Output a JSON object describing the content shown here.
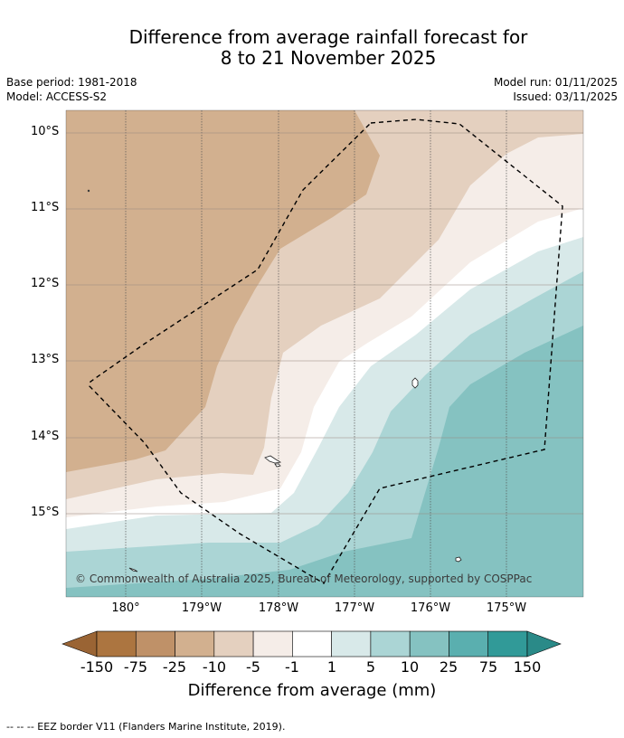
{
  "header": {
    "title_line1": "Difference from average rainfall forecast for",
    "title_line2": "8 to 21 November 2025",
    "base_period": "Base period: 1981-2018",
    "model": "Model: ACCESS-S2",
    "model_run": "Model run: 01/11/2025",
    "issued": "Issued: 03/11/2025"
  },
  "map": {
    "lat_labels": [
      "10°S",
      "11°S",
      "12°S",
      "13°S",
      "14°S",
      "15°S"
    ],
    "lon_labels": [
      "180°",
      "179°W",
      "178°W",
      "177°W",
      "176°W",
      "175°W"
    ],
    "copyright": "© Commonwealth of Australia 2025, Bureau of Meteorology, supported by COSPPac"
  },
  "colorbar": {
    "labels": [
      "-150",
      "-75",
      "-25",
      "-10",
      "-5",
      "-1",
      "1",
      "5",
      "10",
      "25",
      "75",
      "150"
    ],
    "colors": [
      "#ac7540",
      "#bf9168",
      "#d2b08f",
      "#e4d0bf",
      "#f5ede8",
      "#ffffff",
      "#d8e9e9",
      "#abd5d5",
      "#85c2c1",
      "#5aafaf",
      "#319a98",
      "#2a8a88"
    ],
    "low_extend_color": "#9a6434",
    "title": "Difference from average (mm)"
  },
  "legend": {
    "eez": "--  --  -- EEZ border V11 (Flanders Marine Institute, 2019)."
  }
}
